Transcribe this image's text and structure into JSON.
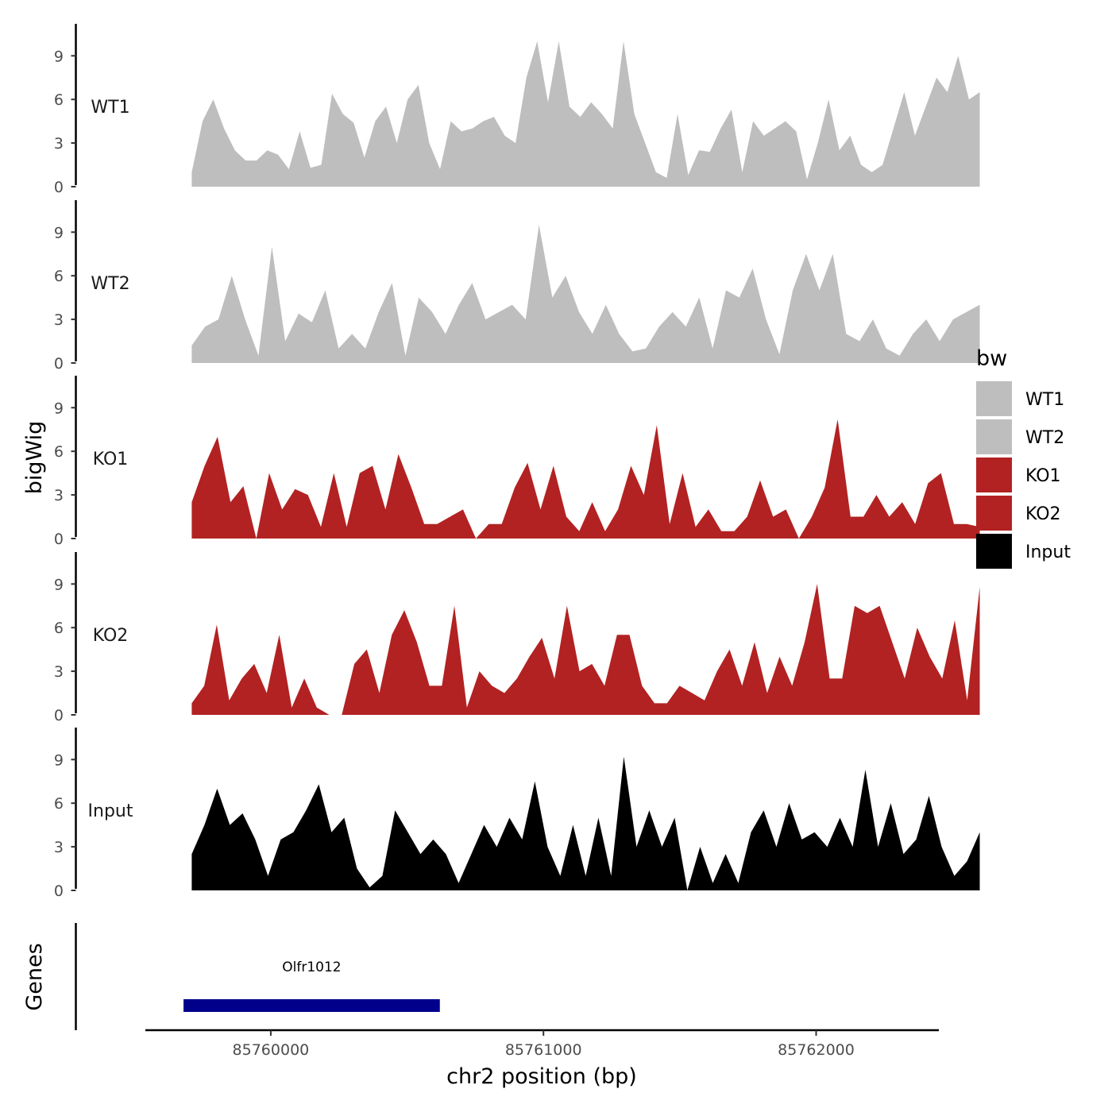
{
  "chart_data": {
    "type": "area",
    "title": "",
    "xlabel": "chr2 position (bp)",
    "ylabel": "bigWig",
    "xlim": [
      85759540,
      85762450
    ],
    "ylim": [
      0,
      11.2
    ],
    "x_ticks": [
      85760000,
      85761000,
      85762000
    ],
    "x_tick_labels": [
      "85760000",
      "85761000",
      "85762000"
    ],
    "y_ticks": [
      0,
      3,
      6,
      9
    ],
    "y_tick_labels": [
      "0",
      "3",
      "6",
      "9"
    ],
    "x_range": [
      85759710,
      85762600
    ],
    "legend": {
      "title": "bw",
      "position": "right",
      "entries": [
        {
          "label": "WT1",
          "color": "#bebebe"
        },
        {
          "label": "WT2",
          "color": "#bebebe"
        },
        {
          "label": "KO1",
          "color": "#b22222"
        },
        {
          "label": "KO2",
          "color": "#b22222"
        },
        {
          "label": "Input",
          "color": "#000000"
        }
      ]
    },
    "series": [
      {
        "name": "WT1",
        "color": "#bebebe",
        "values": [
          1.0,
          4.5,
          6.0,
          4.0,
          2.5,
          1.8,
          1.8,
          2.5,
          2.2,
          1.2,
          3.8,
          1.3,
          1.5,
          6.4,
          5.0,
          4.4,
          2.0,
          4.5,
          5.5,
          3.0,
          6.0,
          7.0,
          3.0,
          1.2,
          4.5,
          3.8,
          4.0,
          4.5,
          4.8,
          3.5,
          3.0,
          7.5,
          10.0,
          5.8,
          10.0,
          5.5,
          4.8,
          5.8,
          5.0,
          4.0,
          10.0,
          5.0,
          3.0,
          1.0,
          0.6,
          5.0,
          0.8,
          2.5,
          2.4,
          4.0,
          5.3,
          1.0,
          4.5,
          3.5,
          4.0,
          4.5,
          3.8,
          0.5,
          3.0,
          6.0,
          2.5,
          3.5,
          1.5,
          1.0,
          1.5,
          4.0,
          6.5,
          3.5,
          5.5,
          7.5,
          6.5,
          9.0,
          6.0,
          6.5
        ]
      },
      {
        "name": "WT2",
        "color": "#bebebe",
        "values": [
          1.2,
          2.5,
          3.0,
          6.0,
          3.0,
          0.5,
          8.0,
          1.5,
          3.4,
          2.8,
          5.0,
          1.0,
          2.0,
          1.0,
          3.5,
          5.5,
          0.5,
          4.5,
          3.5,
          2.0,
          4.0,
          5.5,
          3.0,
          3.5,
          4.0,
          3.0,
          9.5,
          4.5,
          6.0,
          3.5,
          2.0,
          4.0,
          2.0,
          0.8,
          1.0,
          2.5,
          3.5,
          2.5,
          4.5,
          1.0,
          5.0,
          4.5,
          6.5,
          3.0,
          0.6,
          5.0,
          7.5,
          5.0,
          7.5,
          2.0,
          1.5,
          3.0,
          1.0,
          0.5,
          2.0,
          3.0,
          1.5,
          3.0,
          3.5,
          4.0
        ]
      },
      {
        "name": "KO1",
        "color": "#b22222",
        "values": [
          2.5,
          5.0,
          7.0,
          2.5,
          3.6,
          0.0,
          4.5,
          2.0,
          3.4,
          3.0,
          0.8,
          4.5,
          0.8,
          4.5,
          5.0,
          2.0,
          5.8,
          3.5,
          1.0,
          1.0,
          1.5,
          2.0,
          0.0,
          1.0,
          1.0,
          3.5,
          5.2,
          2.0,
          5.0,
          1.5,
          0.5,
          2.5,
          0.5,
          2.0,
          5.0,
          3.0,
          7.8,
          1.0,
          4.5,
          0.8,
          2.0,
          0.5,
          0.5,
          1.5,
          4.0,
          1.5,
          2.0,
          0.0,
          1.5,
          3.5,
          8.2,
          1.5,
          1.5,
          3.0,
          1.5,
          2.5,
          1.0,
          3.8,
          4.5,
          1.0,
          1.0,
          0.8
        ]
      },
      {
        "name": "KO2",
        "color": "#b22222",
        "values": [
          0.8,
          2.0,
          6.2,
          1.0,
          2.5,
          3.5,
          1.5,
          5.5,
          0.5,
          2.5,
          0.5,
          0.0,
          0.0,
          3.5,
          4.5,
          1.5,
          5.5,
          7.2,
          5.0,
          2.0,
          2.0,
          7.5,
          0.5,
          3.0,
          2.0,
          1.5,
          2.5,
          4.0,
          5.3,
          2.5,
          7.5,
          3.0,
          3.5,
          2.0,
          5.5,
          5.5,
          2.0,
          0.8,
          0.8,
          2.0,
          1.5,
          1.0,
          3.0,
          4.5,
          2.0,
          5.0,
          1.5,
          4.0,
          2.0,
          5.0,
          9.0,
          2.5,
          2.5,
          7.5,
          7.0,
          7.5,
          5.0,
          2.5,
          6.0,
          4.0,
          2.5,
          6.5,
          1.0,
          8.8
        ]
      },
      {
        "name": "Input",
        "color": "#000000",
        "values": [
          2.5,
          4.5,
          7.0,
          4.5,
          5.3,
          3.5,
          1.0,
          3.5,
          4.0,
          5.5,
          7.3,
          4.0,
          5.0,
          1.5,
          0.2,
          1.0,
          5.5,
          4.0,
          2.5,
          3.5,
          2.5,
          0.5,
          2.5,
          4.5,
          3.0,
          5.0,
          3.5,
          7.5,
          3.0,
          1.0,
          4.5,
          1.0,
          5.0,
          1.0,
          9.2,
          3.0,
          5.5,
          3.0,
          5.0,
          0.0,
          3.0,
          0.5,
          2.5,
          0.5,
          4.0,
          5.5,
          3.0,
          6.0,
          3.5,
          4.0,
          3.0,
          5.0,
          3.0,
          8.3,
          3.0,
          6.0,
          2.5,
          3.5,
          6.5,
          3.0,
          1.0,
          2.0,
          4.0
        ]
      }
    ],
    "genes": {
      "title": "Genes",
      "features": [
        {
          "name": "Olfr1012",
          "start": 85759680,
          "end": 85760620,
          "color": "#00008b"
        }
      ]
    }
  }
}
